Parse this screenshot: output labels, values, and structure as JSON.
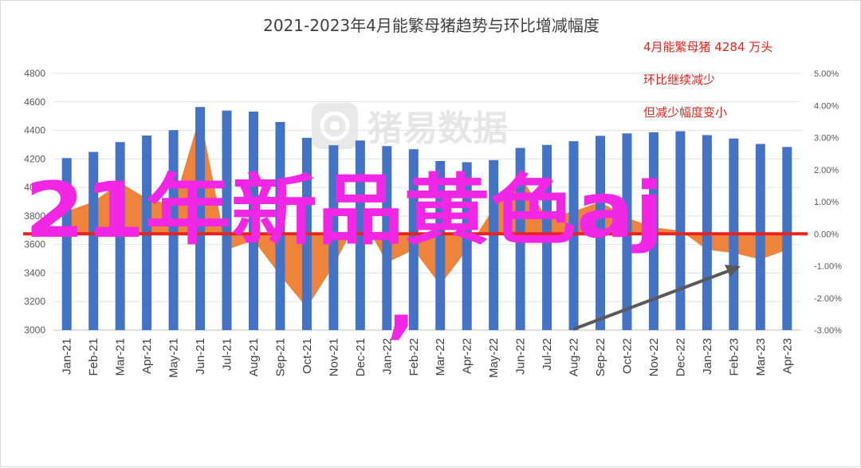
{
  "chart_data": {
    "type": "bar",
    "title": "2021-2023年4月能繁母猪趋势与环比增减幅度",
    "categories": [
      "Jan-21",
      "Feb-21",
      "Mar-21",
      "Apr-21",
      "May-21",
      "Jun-21",
      "Jul-21",
      "Aug-21",
      "Sep-21",
      "Oct-21",
      "Nov-21",
      "Dec-21",
      "Jan-22",
      "Feb-22",
      "Mar-22",
      "Apr-22",
      "May-22",
      "Jun-22",
      "Jul-22",
      "Aug-22",
      "Sep-22",
      "Oct-22",
      "Nov-22",
      "Dec-22",
      "Jan-23",
      "Feb-23",
      "Mar-23",
      "Apr-23"
    ],
    "y_ticks": [
      "4800",
      "4600",
      "4400",
      "4200",
      "4000",
      "3800",
      "3600",
      "3400",
      "3200",
      "3000"
    ],
    "y2_ticks": [
      "5.00%",
      "4.00%",
      "3.00%",
      "2.00%",
      "1.00%",
      "0.00%",
      "-1.00%",
      "-2.00%",
      "-3.00%"
    ],
    "ylim": [
      3000,
      4800
    ],
    "y2lim": [
      -3.0,
      5.0
    ],
    "series": [
      {
        "type": "bar",
        "axis": "primary",
        "color": "#4472c4",
        "values": [
          4206,
          4249,
          4318,
          4364,
          4402,
          4564,
          4539,
          4532,
          4459,
          4348,
          4296,
          4329,
          4290,
          4268,
          4185,
          4177,
          4192,
          4277,
          4298,
          4324,
          4362,
          4379,
          4387,
          4394,
          4367,
          4343,
          4305,
          4284
        ]
      },
      {
        "type": "area",
        "axis": "secondary",
        "color": "#ed7d31",
        "values": [
          0.7,
          1.0,
          1.6,
          1.1,
          0.9,
          3.7,
          -0.5,
          -0.2,
          -1.3,
          -2.3,
          -1.0,
          0.6,
          -0.9,
          -0.5,
          -1.6,
          -0.5,
          0.8,
          1.8,
          0.5,
          0.7,
          1.0,
          0.5,
          0.2,
          0.1,
          -0.5,
          -0.6,
          -0.8,
          -0.5
        ]
      }
    ],
    "zero_line_color": "#e8231d",
    "grid": true,
    "annotations": [
      "4月能繁母猪 4284 万头",
      "环比继续减少",
      "但减少幅度变小"
    ],
    "watermark_text": "猪易数据",
    "overlay_text": "21年新品黄色aj",
    "overlay_punct": ","
  }
}
